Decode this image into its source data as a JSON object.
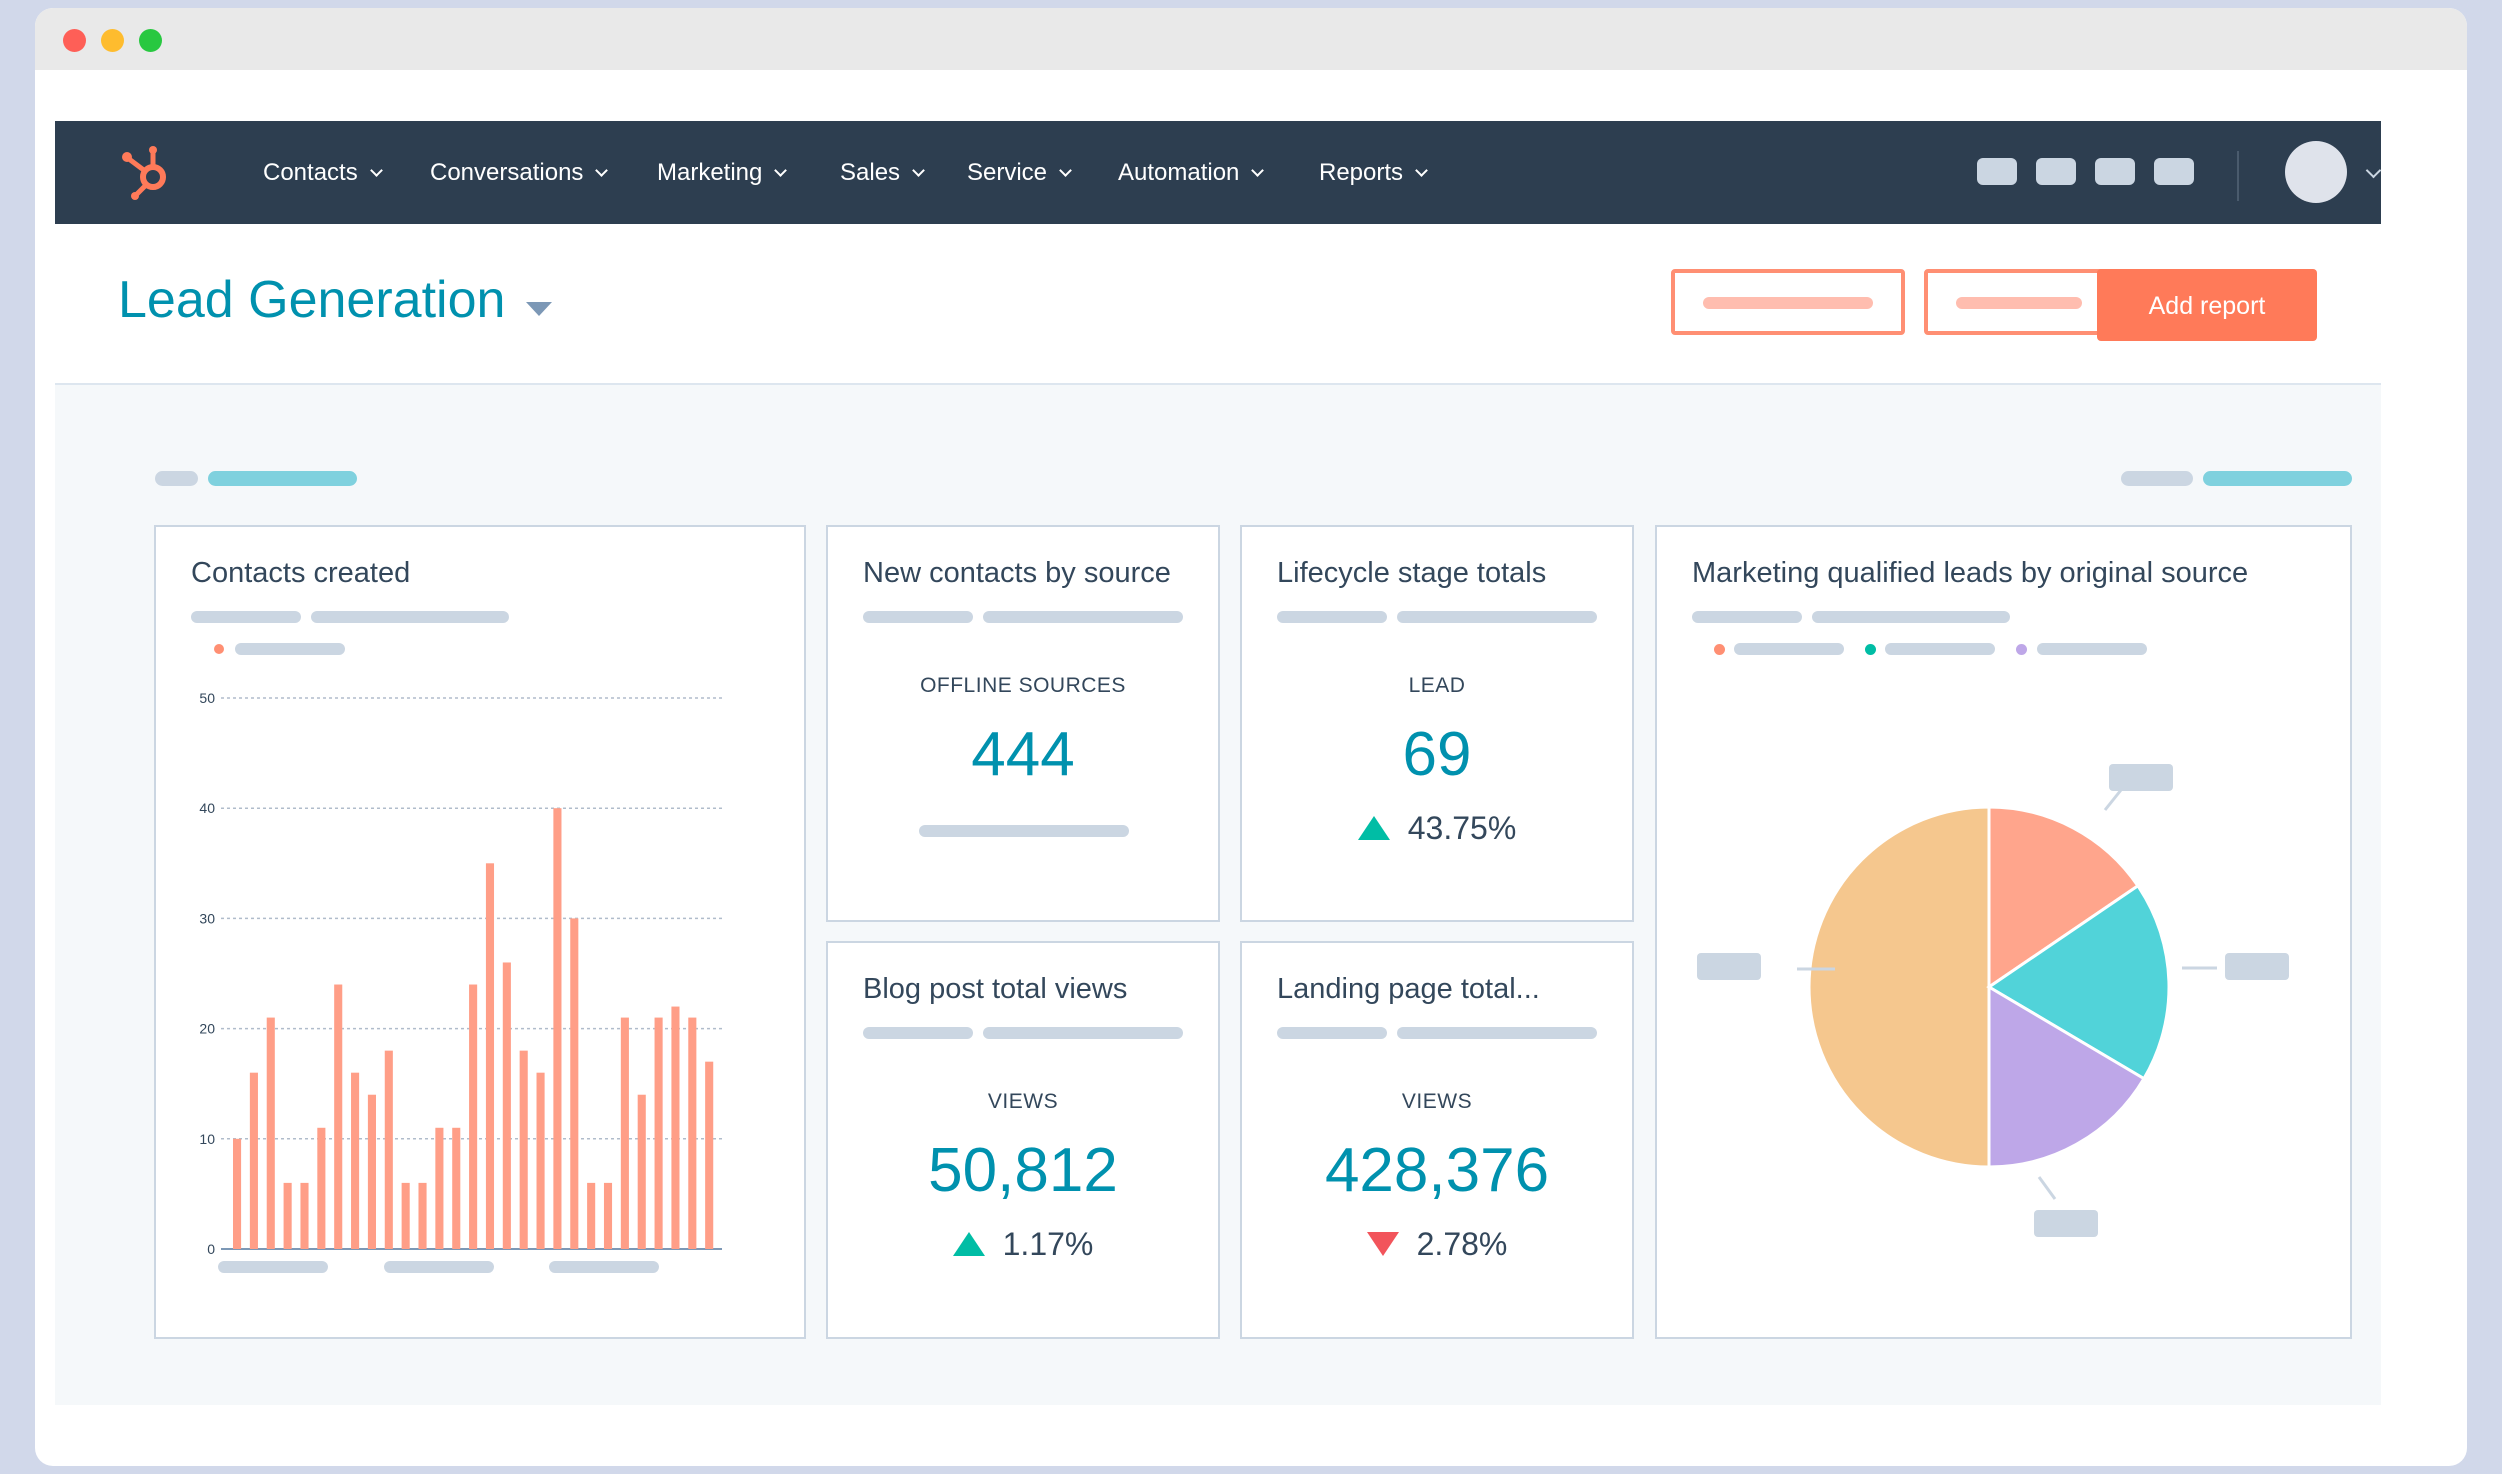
{
  "window": {
    "controls": [
      {
        "name": "close",
        "color": "#fe5f57"
      },
      {
        "name": "minimize",
        "color": "#febc2e"
      },
      {
        "name": "maximize",
        "color": "#28c840"
      }
    ]
  },
  "nav": {
    "logo_icon": "hubspot-sprocket-icon",
    "items": [
      {
        "label": "Contacts"
      },
      {
        "label": "Conversations"
      },
      {
        "label": "Marketing"
      },
      {
        "label": "Sales"
      },
      {
        "label": "Service"
      },
      {
        "label": "Automation"
      },
      {
        "label": "Reports"
      }
    ]
  },
  "header": {
    "title": "Lead Generation",
    "primary_button": "Add report"
  },
  "cards": {
    "contacts_created": {
      "title": "Contacts created"
    },
    "new_contacts": {
      "title": "New contacts by source",
      "label": "OFFLINE SOURCES",
      "value": "444"
    },
    "lifecycle": {
      "title": "Lifecycle stage totals",
      "label": "LEAD",
      "value": "69",
      "change": "43.75%",
      "direction": "up"
    },
    "blog": {
      "title": "Blog post total views",
      "label": "VIEWS",
      "value": "50,812",
      "change": "1.17%",
      "direction": "up"
    },
    "landing": {
      "title": "Landing page total...",
      "label": "VIEWS",
      "value": "428,376",
      "change": "2.78%",
      "direction": "down"
    },
    "mql": {
      "title": "Marketing qualified leads by original source"
    }
  },
  "colors": {
    "accent": "#ff7a59",
    "teal": "#0091ae",
    "up": "#00bda5",
    "down": "#f2545b"
  },
  "chart_data": [
    {
      "type": "bar",
      "ylim": [
        0,
        50
      ],
      "yticks": [
        "0",
        "10",
        "20",
        "30",
        "40",
        "50"
      ],
      "values": [
        10,
        16,
        21,
        6,
        6,
        11,
        24,
        16,
        14,
        18,
        6,
        6,
        11,
        11,
        24,
        35,
        26,
        18,
        16,
        40,
        30,
        6,
        6,
        21,
        14,
        21,
        22,
        21,
        17
      ],
      "color": "#ff9e87",
      "grid": true
    },
    {
      "type": "pie",
      "slices": [
        {
          "value": 50,
          "color": "#f5c78e"
        },
        {
          "value": 15.5,
          "color": "#ffa58c"
        },
        {
          "value": 18,
          "color": "#51d3d9"
        },
        {
          "value": 16.5,
          "color": "#bea7e8"
        }
      ]
    }
  ]
}
